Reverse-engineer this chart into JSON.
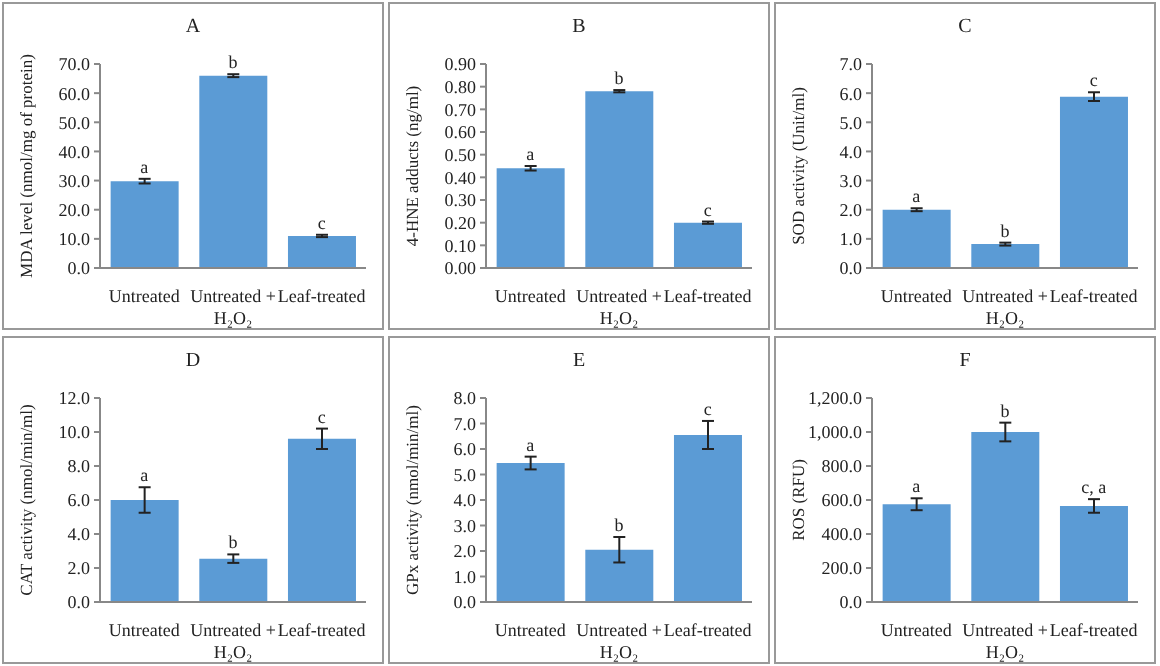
{
  "chart_data": [
    {
      "type": "bar",
      "title": "A",
      "ylabel": "MDA level (nmol/mg of protein)",
      "categories": [
        "Untreated",
        "Untreated + H₂O₂",
        "Leaf-treated"
      ],
      "values": [
        29.8,
        66.0,
        11.0
      ],
      "errors": [
        0.8,
        0.5,
        0.4
      ],
      "color": "#5b9bd5",
      "ylim": [
        0,
        70
      ],
      "yticks": [
        {
          "value": 0,
          "label": "0.0"
        },
        {
          "value": 10,
          "label": "10.0"
        },
        {
          "value": 20,
          "label": "20.0"
        },
        {
          "value": 30,
          "label": "30.0"
        },
        {
          "value": 40,
          "label": "40.0"
        },
        {
          "value": 50,
          "label": "50.0"
        },
        {
          "value": 60,
          "label": "60.0"
        },
        {
          "value": 70,
          "label": "70.0"
        }
      ],
      "annotations": [
        {
          "text": "a",
          "x": "Untreated",
          "y": 30.6
        },
        {
          "text": "b",
          "x": "Untreated + H₂O₂",
          "y": 66.5
        },
        {
          "text": "c",
          "x": "Leaf-treated",
          "y": 11.4
        }
      ]
    },
    {
      "type": "bar",
      "title": "B",
      "ylabel": "4-HNE adducts (ng/ml)",
      "categories": [
        "Untreated",
        "Untreated + H₂O₂",
        "Leaf-treated"
      ],
      "values": [
        0.44,
        0.78,
        0.2
      ],
      "errors": [
        0.01,
        0.005,
        0.005
      ],
      "color": "#5b9bd5",
      "ylim": [
        0,
        0.9
      ],
      "yticks": [
        {
          "value": 0,
          "label": "0.00"
        },
        {
          "value": 0.1,
          "label": "0.10"
        },
        {
          "value": 0.2,
          "label": "0.20"
        },
        {
          "value": 0.3,
          "label": "0.30"
        },
        {
          "value": 0.4,
          "label": "0.40"
        },
        {
          "value": 0.5,
          "label": "0.50"
        },
        {
          "value": 0.6,
          "label": "0.60"
        },
        {
          "value": 0.7,
          "label": "0.70"
        },
        {
          "value": 0.8,
          "label": "0.80"
        },
        {
          "value": 0.9,
          "label": "0.90"
        }
      ],
      "annotations": [
        {
          "text": "a",
          "x": "Untreated",
          "y": 0.45
        },
        {
          "text": "b",
          "x": "Untreated + H₂O₂",
          "y": 0.785
        },
        {
          "text": "c",
          "x": "Leaf-treated",
          "y": 0.205
        }
      ]
    },
    {
      "type": "bar",
      "title": "C",
      "ylabel": "SOD activity (Unit/ml)",
      "categories": [
        "Untreated",
        "Untreated + H₂O₂",
        "Leaf-treated"
      ],
      "values": [
        2.0,
        0.82,
        5.88
      ],
      "errors": [
        0.05,
        0.05,
        0.15
      ],
      "color": "#5b9bd5",
      "ylim": [
        0,
        7
      ],
      "yticks": [
        {
          "value": 0,
          "label": "0.0"
        },
        {
          "value": 1,
          "label": "1.0"
        },
        {
          "value": 2,
          "label": "2.0"
        },
        {
          "value": 3,
          "label": "3.0"
        },
        {
          "value": 4,
          "label": "4.0"
        },
        {
          "value": 5,
          "label": "5.0"
        },
        {
          "value": 6,
          "label": "6.0"
        },
        {
          "value": 7,
          "label": "7.0"
        }
      ],
      "annotations": [
        {
          "text": "a",
          "x": "Untreated",
          "y": 2.05
        },
        {
          "text": "b",
          "x": "Untreated + H₂O₂",
          "y": 0.87
        },
        {
          "text": "c",
          "x": "Leaf-treated",
          "y": 6.03
        }
      ]
    },
    {
      "type": "bar",
      "title": "D",
      "ylabel": "CAT activity (nmol/min/ml)",
      "categories": [
        "Untreated",
        "Untreated + H₂O₂",
        "Leaf-treated"
      ],
      "values": [
        6.0,
        2.55,
        9.6
      ],
      "errors": [
        0.75,
        0.25,
        0.6
      ],
      "color": "#5b9bd5",
      "ylim": [
        0,
        12
      ],
      "yticks": [
        {
          "value": 0,
          "label": "0.0"
        },
        {
          "value": 2,
          "label": "2.0"
        },
        {
          "value": 4,
          "label": "4.0"
        },
        {
          "value": 6,
          "label": "6.0"
        },
        {
          "value": 8,
          "label": "8.0"
        },
        {
          "value": 10,
          "label": "10.0"
        },
        {
          "value": 12,
          "label": "12.0"
        }
      ],
      "annotations": [
        {
          "text": "a",
          "x": "Untreated",
          "y": 6.75
        },
        {
          "text": "b",
          "x": "Untreated + H₂O₂",
          "y": 2.8
        },
        {
          "text": "c",
          "x": "Leaf-treated",
          "y": 10.2
        }
      ]
    },
    {
      "type": "bar",
      "title": "E",
      "ylabel": "GPx activity (nmol/min/ml)",
      "categories": [
        "Untreated",
        "Untreated + H₂O₂",
        "Leaf-treated"
      ],
      "values": [
        5.45,
        2.05,
        6.55
      ],
      "errors": [
        0.25,
        0.5,
        0.55
      ],
      "color": "#5b9bd5",
      "ylim": [
        0,
        8
      ],
      "yticks": [
        {
          "value": 0,
          "label": "0.0"
        },
        {
          "value": 1,
          "label": "1.0"
        },
        {
          "value": 2,
          "label": "2.0"
        },
        {
          "value": 3,
          "label": "3.0"
        },
        {
          "value": 4,
          "label": "4.0"
        },
        {
          "value": 5,
          "label": "5.0"
        },
        {
          "value": 6,
          "label": "6.0"
        },
        {
          "value": 7,
          "label": "7.0"
        },
        {
          "value": 8,
          "label": "8.0"
        }
      ],
      "annotations": [
        {
          "text": "a",
          "x": "Untreated",
          "y": 5.7
        },
        {
          "text": "b",
          "x": "Untreated + H₂O₂",
          "y": 2.55
        },
        {
          "text": "c",
          "x": "Leaf-treated",
          "y": 7.1
        }
      ]
    },
    {
      "type": "bar",
      "title": "F",
      "ylabel": "ROS (RFU)",
      "categories": [
        "Untreated",
        "Untreated + H₂O₂",
        "Leaf-treated"
      ],
      "values": [
        575,
        1000,
        565
      ],
      "errors": [
        35,
        55,
        40
      ],
      "color": "#5b9bd5",
      "ylim": [
        0,
        1200
      ],
      "yticks": [
        {
          "value": 0,
          "label": "0.0"
        },
        {
          "value": 200,
          "label": "200.0"
        },
        {
          "value": 400,
          "label": "400.0"
        },
        {
          "value": 600,
          "label": "600.0"
        },
        {
          "value": 800,
          "label": "800.0"
        },
        {
          "value": 1000,
          "label": "1,000.0"
        },
        {
          "value": 1200,
          "label": "1,200.0"
        }
      ],
      "annotations": [
        {
          "text": "a",
          "x": "Untreated",
          "y": 610
        },
        {
          "text": "b",
          "x": "Untreated + H₂O₂",
          "y": 1055
        },
        {
          "text": "c, a",
          "x": "Leaf-treated",
          "y": 605
        }
      ]
    }
  ]
}
